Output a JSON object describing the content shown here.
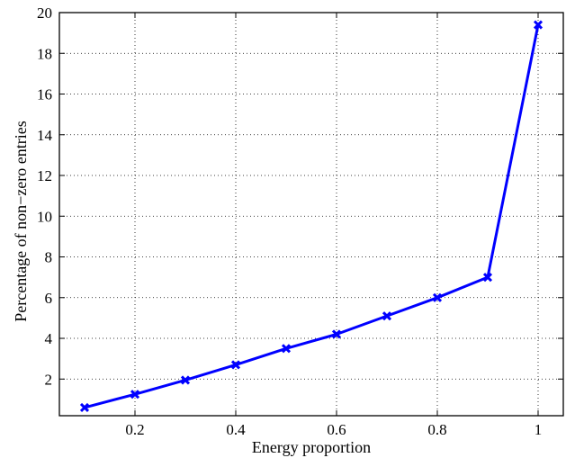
{
  "chart_data": {
    "type": "line",
    "title": "",
    "xlabel": "Energy proportion",
    "ylabel": "Percentage of non−zero entries",
    "xlim": [
      0.05,
      1.05
    ],
    "ylim": [
      0.2,
      20
    ],
    "x_ticks": [
      0.2,
      0.4,
      0.6,
      0.8,
      1
    ],
    "x_tick_labels": [
      "0.2",
      "0.4",
      "0.6",
      "0.8",
      "1"
    ],
    "y_ticks": [
      2,
      4,
      6,
      8,
      10,
      12,
      14,
      16,
      18,
      20
    ],
    "y_tick_labels": [
      "2",
      "4",
      "6",
      "8",
      "10",
      "12",
      "14",
      "16",
      "18",
      "20"
    ],
    "grid": true,
    "series": [
      {
        "color": "#0000ff",
        "marker": "x",
        "x": [
          0.1,
          0.2,
          0.3,
          0.4,
          0.5,
          0.6,
          0.7,
          0.8,
          0.9,
          1.0
        ],
        "y": [
          0.6,
          1.25,
          1.95,
          2.7,
          3.5,
          4.2,
          5.1,
          6.0,
          7.0,
          19.4
        ]
      }
    ]
  }
}
